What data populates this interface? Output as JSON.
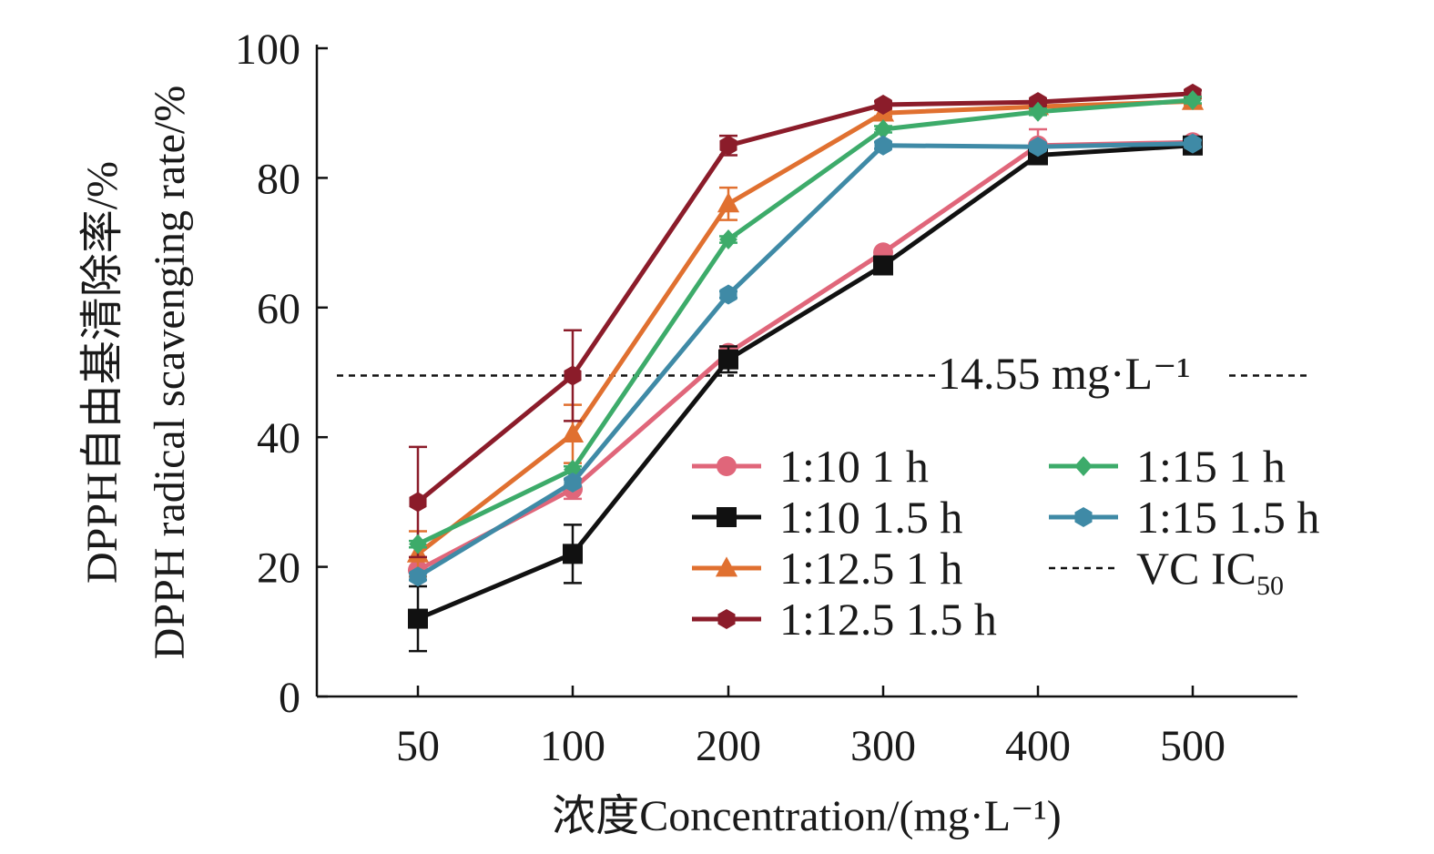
{
  "chart_data": {
    "type": "line",
    "categories": [
      "50",
      "100",
      "200",
      "300",
      "400",
      "500"
    ],
    "ylim": [
      0,
      100
    ],
    "yticks": [
      "0",
      "20",
      "40",
      "60",
      "80",
      "100"
    ],
    "xlabel": "浓度Concentration/(mg·L⁻¹)",
    "ylabel_cn": "DPPH自由基清除率/%",
    "ylabel_en": "DPPH radical scavenging rate/%",
    "series": [
      {
        "name": "1:10 1 h",
        "color": "#e0667a",
        "marker": "circle",
        "values": [
          19.5,
          32,
          53,
          68.5,
          85,
          85.5
        ],
        "errors": [
          1.5,
          1.5,
          1,
          0.5,
          2.5,
          0.5
        ]
      },
      {
        "name": "1:10 1.5 h",
        "color": "#111111",
        "marker": "square",
        "values": [
          12,
          22,
          52,
          66.5,
          83.5,
          85
        ],
        "errors": [
          5,
          4.5,
          2,
          0.5,
          1,
          0.5
        ]
      },
      {
        "name": "1:12.5 1 h",
        "color": "#e07030",
        "marker": "triangle",
        "values": [
          22,
          40.5,
          76,
          90,
          91,
          91.8
        ],
        "errors": [
          3.5,
          4.5,
          2.5,
          0.5,
          0.5,
          0.5
        ]
      },
      {
        "name": "1:12.5 1.5 h",
        "color": "#8b1c2a",
        "marker": "hexagon",
        "values": [
          30,
          49.5,
          85,
          91.3,
          91.7,
          93
        ],
        "errors": [
          8.5,
          7,
          1.5,
          0.5,
          0.5,
          0.5
        ]
      },
      {
        "name": "1:15 1 h",
        "color": "#3dab6a",
        "marker": "diamond",
        "values": [
          23.5,
          35,
          70.5,
          87.5,
          90.2,
          92
        ],
        "errors": [
          0.5,
          0.5,
          0.5,
          0.5,
          0.5,
          0.5
        ]
      },
      {
        "name": "1:15 1.5 h",
        "color": "#3f8aa6",
        "marker": "hexagon",
        "values": [
          18.5,
          33,
          62,
          85,
          84.8,
          85.3
        ],
        "errors": [
          0.5,
          0.5,
          0.5,
          0.5,
          0.5,
          0.5
        ]
      }
    ],
    "reference_line": {
      "name": "VC IC",
      "subscript": "50",
      "y": 49.5,
      "style": "dashed",
      "color": "#111111"
    },
    "annotation": {
      "text": "14.55 mg·L⁻¹"
    }
  }
}
